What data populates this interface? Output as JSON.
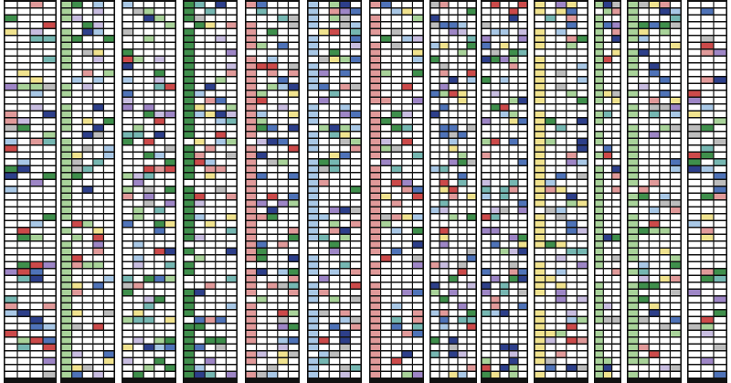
{
  "palette": {
    "white": "#ffffff",
    "black": "#111111",
    "light_green": "#a9d39a",
    "dark_green": "#3f8f4c",
    "light_blue": "#a9c8e6",
    "blue": "#4f73b8",
    "navy": "#2d3f8a",
    "red": "#cc4a4a",
    "pink": "#e19a9a",
    "yellow": "#f1e38f",
    "purple": "#9e86c6",
    "lavender": "#c8bde0",
    "teal": "#76b7b2",
    "gray": "#bdbdbd"
  },
  "panels": [
    {
      "id": "p1",
      "sub_columns": 4,
      "tint": "none"
    },
    {
      "id": "p2",
      "sub_columns": 5,
      "tint": "light_green"
    },
    {
      "id": "p3",
      "sub_columns": 5,
      "tint": "none"
    },
    {
      "id": "p4",
      "sub_columns": 5,
      "tint": "dark_green"
    },
    {
      "id": "p5",
      "sub_columns": 5,
      "tint": "pink"
    },
    {
      "id": "p6",
      "sub_columns": 5,
      "tint": "light_blue"
    },
    {
      "id": "p7",
      "sub_columns": 5,
      "tint": "pink"
    },
    {
      "id": "p8",
      "sub_columns": 5,
      "tint": "none"
    },
    {
      "id": "p9",
      "sub_columns": 5,
      "tint": "none"
    },
    {
      "id": "p10",
      "sub_columns": 5,
      "tint": "yellow"
    },
    {
      "id": "p11",
      "sub_columns": 3,
      "tint": "light_green"
    },
    {
      "id": "p12",
      "sub_columns": 5,
      "tint": "light_green"
    },
    {
      "id": "p13",
      "sub_columns": 3,
      "tint": "none"
    }
  ]
}
